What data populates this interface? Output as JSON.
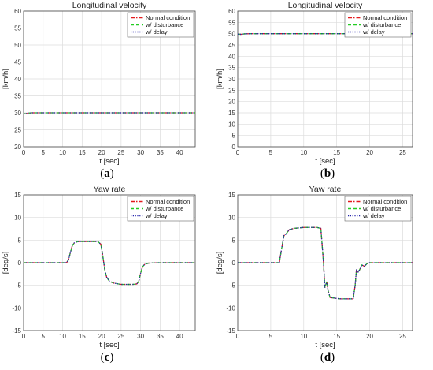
{
  "chart_data": [
    {
      "type": "line",
      "title": "Longitudinal velocity",
      "xlabel": "t [sec]",
      "ylabel": "[km/h]",
      "caption": "a",
      "xlim": [
        0,
        44
      ],
      "ylim": [
        20,
        60
      ],
      "xticks": [
        "0",
        "5",
        "10",
        "15",
        "20",
        "25",
        "30",
        "35",
        "40"
      ],
      "yticks": [
        "20",
        "25",
        "30",
        "35",
        "40",
        "45",
        "50",
        "55",
        "60"
      ],
      "grid": true,
      "legend_position": "top-right",
      "series": [
        {
          "name": "Normal condition",
          "color": "#e31a1c",
          "dash": "dashdot",
          "x": [
            0,
            0.5,
            1,
            2,
            4,
            44
          ],
          "y": [
            29.8,
            29.7,
            29.9,
            30.0,
            30.0,
            30.0
          ]
        },
        {
          "name": "w/ disturbance",
          "color": "#22cc22",
          "dash": "dash",
          "x": [
            0,
            0.5,
            1,
            2,
            4,
            44
          ],
          "y": [
            29.8,
            29.7,
            29.9,
            30.0,
            30.0,
            30.0
          ]
        },
        {
          "name": "w/ delay",
          "color": "#2222aa",
          "dash": "dot",
          "x": [
            0,
            0.5,
            1,
            2,
            4,
            44
          ],
          "y": [
            29.8,
            29.7,
            29.9,
            30.0,
            30.0,
            30.0
          ]
        }
      ]
    },
    {
      "type": "line",
      "title": "Longitudinal velocity",
      "xlabel": "t [sec]",
      "ylabel": "[km/h]",
      "caption": "b",
      "xlim": [
        0,
        26.5
      ],
      "ylim": [
        0,
        60
      ],
      "xticks": [
        "0",
        "5",
        "10",
        "15",
        "20",
        "25"
      ],
      "yticks": [
        "0",
        "5",
        "10",
        "15",
        "20",
        "25",
        "30",
        "35",
        "40",
        "45",
        "50",
        "55",
        "60"
      ],
      "grid": true,
      "legend_position": "top-right",
      "series": [
        {
          "name": "Normal condition",
          "color": "#e31a1c",
          "dash": "dashdot",
          "x": [
            0,
            0.5,
            1,
            2,
            4,
            26.5
          ],
          "y": [
            49.8,
            49.7,
            49.9,
            50.0,
            50.0,
            50.0
          ]
        },
        {
          "name": "w/ disturbance",
          "color": "#22cc22",
          "dash": "dash",
          "x": [
            0,
            0.5,
            1,
            2,
            4,
            26.5
          ],
          "y": [
            49.8,
            49.7,
            49.9,
            50.0,
            50.0,
            50.0
          ]
        },
        {
          "name": "w/ delay",
          "color": "#2222aa",
          "dash": "dot",
          "x": [
            0,
            0.5,
            1,
            2,
            4,
            26.5
          ],
          "y": [
            49.8,
            49.7,
            49.9,
            50.0,
            50.0,
            50.0
          ]
        }
      ]
    },
    {
      "type": "line",
      "title": "Yaw rate",
      "xlabel": "t [sec]",
      "ylabel": "[deg/s]",
      "caption": "c",
      "xlim": [
        0,
        44
      ],
      "ylim": [
        -15,
        15
      ],
      "xticks": [
        "0",
        "5",
        "10",
        "15",
        "20",
        "25",
        "30",
        "35",
        "40"
      ],
      "yticks": [
        "-15",
        "-10",
        "-5",
        "0",
        "5",
        "10",
        "15"
      ],
      "grid": true,
      "legend_position": "top-right",
      "series": [
        {
          "name": "Normal condition",
          "color": "#e31a1c",
          "dash": "dashdot",
          "x": [
            0,
            11,
            11.5,
            12,
            12.5,
            13,
            14,
            16,
            19,
            19.8,
            20.3,
            20.8,
            21.3,
            22,
            23,
            25,
            28,
            29,
            29.5,
            30,
            30.5,
            31,
            32,
            35,
            44
          ],
          "y": [
            0,
            0,
            0.6,
            2.3,
            3.8,
            4.4,
            4.7,
            4.7,
            4.7,
            4.1,
            1.5,
            -1.5,
            -3.2,
            -4.1,
            -4.5,
            -4.8,
            -4.8,
            -4.7,
            -4.2,
            -2.3,
            -0.9,
            -0.4,
            -0.1,
            0,
            0
          ]
        },
        {
          "name": "w/ disturbance",
          "color": "#22cc22",
          "dash": "dash",
          "x": [
            0,
            11,
            11.5,
            12,
            12.5,
            13,
            14,
            16,
            19,
            19.8,
            20.3,
            20.8,
            21.3,
            22,
            23,
            25,
            28,
            29,
            29.5,
            30,
            30.5,
            31,
            32,
            35,
            44
          ],
          "y": [
            0,
            0,
            0.6,
            2.3,
            3.8,
            4.4,
            4.7,
            4.7,
            4.7,
            4.1,
            1.5,
            -1.5,
            -3.2,
            -4.1,
            -4.5,
            -4.8,
            -4.8,
            -4.7,
            -4.2,
            -2.3,
            -0.9,
            -0.4,
            -0.1,
            0,
            0
          ]
        },
        {
          "name": "w/ delay",
          "color": "#2222aa",
          "dash": "dot",
          "x": [
            0,
            11,
            11.5,
            12,
            12.5,
            13,
            14,
            16,
            19,
            19.8,
            20.3,
            20.8,
            21.3,
            22,
            23,
            25,
            28,
            29,
            29.5,
            30,
            30.5,
            31,
            32,
            35,
            44
          ],
          "y": [
            0,
            0,
            0.6,
            2.3,
            3.8,
            4.4,
            4.7,
            4.7,
            4.7,
            4.1,
            1.5,
            -1.5,
            -3.2,
            -4.1,
            -4.5,
            -4.8,
            -4.8,
            -4.7,
            -4.2,
            -2.3,
            -0.9,
            -0.4,
            -0.1,
            0,
            0
          ]
        }
      ]
    },
    {
      "type": "line",
      "title": "Yaw rate",
      "xlabel": "t [sec]",
      "ylabel": "[deg/s]",
      "caption": "d",
      "xlim": [
        0,
        26.5
      ],
      "ylim": [
        -15,
        15
      ],
      "xticks": [
        "0",
        "5",
        "10",
        "15",
        "20",
        "25"
      ],
      "yticks": [
        "-15",
        "-10",
        "-5",
        "0",
        "5",
        "10",
        "15"
      ],
      "grid": true,
      "legend_position": "top-right",
      "series": [
        {
          "name": "Normal condition",
          "color": "#e31a1c",
          "dash": "dashdot",
          "x": [
            0,
            6.3,
            6.7,
            7.0,
            7.3,
            7.8,
            8.5,
            10,
            12,
            12.6,
            13.0,
            13.2,
            13.5,
            13.7,
            14.0,
            14.5,
            15.5,
            17.5,
            17.8,
            18.0,
            18.2,
            18.5,
            18.8,
            19.2,
            19.6,
            20,
            21,
            26.5
          ],
          "y": [
            0,
            0,
            3.5,
            6.0,
            6.3,
            7.3,
            7.6,
            7.8,
            7.8,
            7.6,
            0,
            -5.5,
            -4.2,
            -6.2,
            -7.7,
            -7.8,
            -8.0,
            -8.0,
            -5.0,
            -1.5,
            -2.2,
            -1.5,
            -0.5,
            -0.8,
            -0.2,
            0,
            0,
            0
          ]
        },
        {
          "name": "w/ disturbance",
          "color": "#22cc22",
          "dash": "dash",
          "x": [
            0,
            6.3,
            6.7,
            7.0,
            7.3,
            7.8,
            8.5,
            10,
            12,
            12.6,
            13.0,
            13.2,
            13.5,
            13.7,
            14.0,
            14.5,
            15.5,
            17.5,
            17.8,
            18.0,
            18.2,
            18.5,
            18.8,
            19.2,
            19.6,
            20,
            21,
            26.5
          ],
          "y": [
            0,
            0,
            3.5,
            6.0,
            6.3,
            7.3,
            7.6,
            7.8,
            7.8,
            7.6,
            0,
            -5.5,
            -4.2,
            -6.2,
            -7.7,
            -7.8,
            -8.0,
            -8.0,
            -5.0,
            -1.5,
            -2.2,
            -1.5,
            -0.5,
            -0.8,
            -0.2,
            0,
            0,
            0
          ]
        },
        {
          "name": "w/ delay",
          "color": "#2222aa",
          "dash": "dot",
          "x": [
            0,
            6.3,
            6.7,
            7.0,
            7.3,
            7.8,
            8.5,
            10,
            12,
            12.6,
            13.0,
            13.2,
            13.5,
            13.7,
            14.0,
            14.5,
            15.5,
            17.5,
            17.8,
            18.0,
            18.2,
            18.5,
            18.8,
            19.2,
            19.6,
            20,
            21,
            26.5
          ],
          "y": [
            0,
            0,
            3.5,
            6.0,
            6.3,
            7.3,
            7.6,
            7.8,
            7.8,
            7.6,
            0,
            -5.5,
            -4.2,
            -6.2,
            -7.7,
            -7.8,
            -8.0,
            -8.0,
            -5.0,
            -1.5,
            -2.2,
            -1.5,
            -0.5,
            -0.8,
            -0.2,
            0,
            0,
            0
          ]
        }
      ]
    }
  ]
}
